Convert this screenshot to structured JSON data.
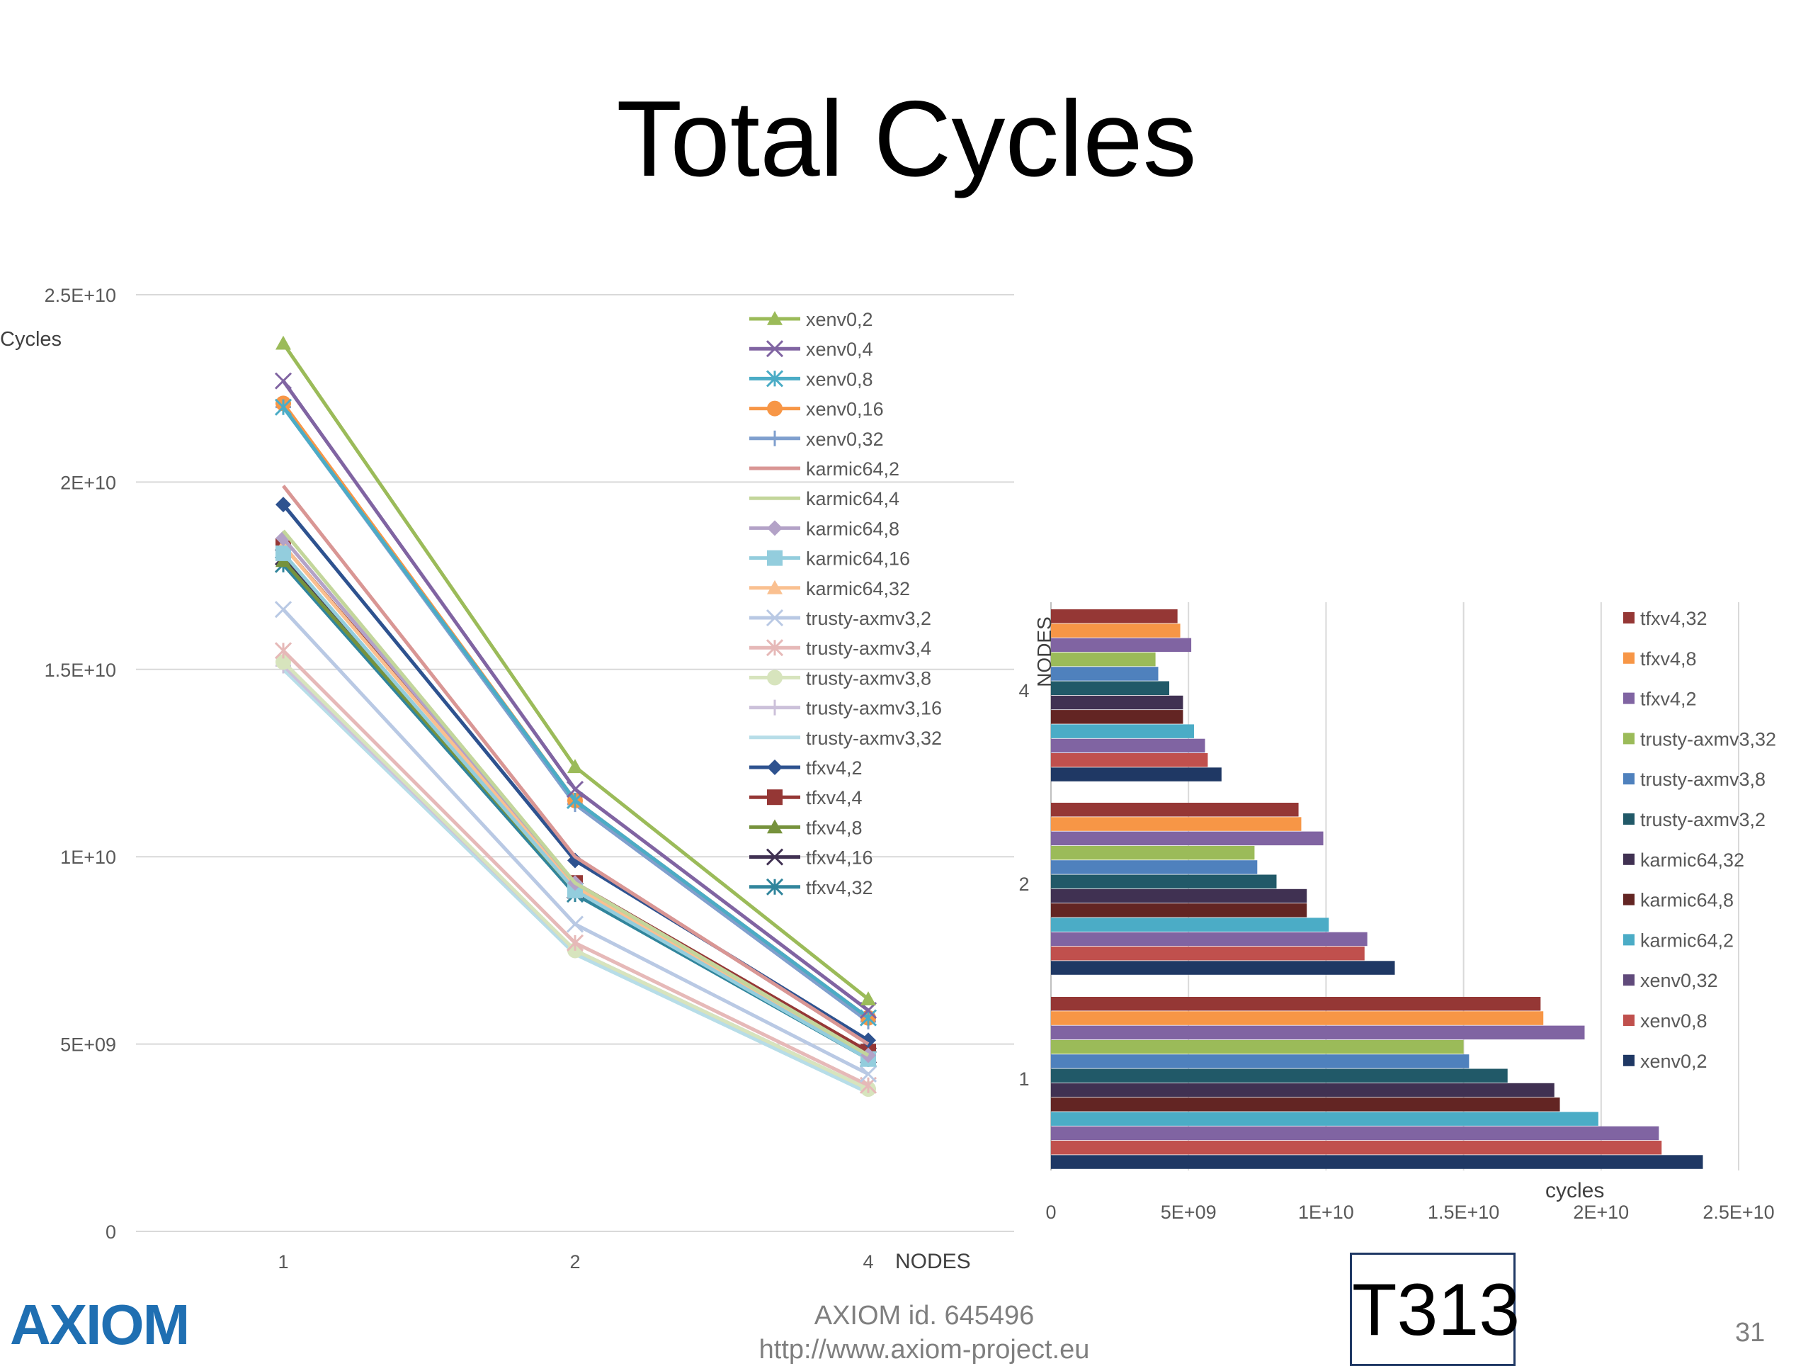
{
  "slide": {
    "title": "Total Cycles",
    "footer_id": "AXIOM id. 645496",
    "footer_url": "http://www.axiom-project.eu",
    "tag": "T313",
    "page_number": "31",
    "logo_text": "AXIOM"
  },
  "chart_data": [
    {
      "type": "line",
      "ylabel": "Cycles",
      "xlabel": "NODES",
      "categories": [
        "1",
        "2",
        "4"
      ],
      "ylim": [
        0,
        25000000000
      ],
      "yticks": [
        "0",
        "5E+09",
        "1E+10",
        "1.5E+10",
        "2E+10",
        "2.5E+10"
      ],
      "grid": true,
      "legend_position": "right",
      "series": [
        {
          "name": "xenv0,2",
          "color": "#9bbb59",
          "marker": "triangle",
          "values": [
            23700000000,
            12400000000,
            6200000000
          ]
        },
        {
          "name": "xenv0,4",
          "color": "#8064a2",
          "marker": "x",
          "values": [
            22700000000,
            11800000000,
            5900000000
          ]
        },
        {
          "name": "xenv0,8",
          "color": "#4bacc6",
          "marker": "star",
          "values": [
            22000000000,
            11500000000,
            5700000000
          ]
        },
        {
          "name": "xenv0,16",
          "color": "#f79646",
          "marker": "circle",
          "values": [
            22100000000,
            11500000000,
            5700000000
          ]
        },
        {
          "name": "xenv0,32",
          "color": "#7f9fce",
          "marker": "plus",
          "values": [
            22000000000,
            11400000000,
            5600000000
          ]
        },
        {
          "name": "karmic64,2",
          "color": "#d99694",
          "marker": "none",
          "values": [
            19900000000,
            10000000000,
            5000000000
          ]
        },
        {
          "name": "karmic64,4",
          "color": "#c3d69b",
          "marker": "none",
          "values": [
            18700000000,
            9300000000,
            4700000000
          ]
        },
        {
          "name": "karmic64,8",
          "color": "#b3a2c7",
          "marker": "diamond",
          "values": [
            18500000000,
            9300000000,
            4700000000
          ]
        },
        {
          "name": "karmic64,16",
          "color": "#93cddd",
          "marker": "square",
          "values": [
            18100000000,
            9100000000,
            4600000000
          ]
        },
        {
          "name": "karmic64,32",
          "color": "#fac090",
          "marker": "triangle",
          "values": [
            18300000000,
            9200000000,
            4600000000
          ]
        },
        {
          "name": "trusty-axmv3,2",
          "color": "#b9c9e4",
          "marker": "x",
          "values": [
            16600000000,
            8200000000,
            4200000000
          ]
        },
        {
          "name": "trusty-axmv3,4",
          "color": "#e6b9b8",
          "marker": "star",
          "values": [
            15500000000,
            7700000000,
            3900000000
          ]
        },
        {
          "name": "trusty-axmv3,8",
          "color": "#d7e4bd",
          "marker": "circle",
          "values": [
            15200000000,
            7500000000,
            3800000000
          ]
        },
        {
          "name": "trusty-axmv3,16",
          "color": "#ccc1da",
          "marker": "plus",
          "values": [
            15100000000,
            7500000000,
            3800000000
          ]
        },
        {
          "name": "trusty-axmv3,32",
          "color": "#b7dde8",
          "marker": "none",
          "values": [
            15000000000,
            7400000000,
            3700000000
          ]
        },
        {
          "name": "tfxv4,2",
          "color": "#2e528f",
          "marker": "diamond",
          "values": [
            19400000000,
            9900000000,
            5100000000
          ]
        },
        {
          "name": "tfxv4,4",
          "color": "#953735",
          "marker": "square",
          "values": [
            18300000000,
            9300000000,
            4800000000
          ]
        },
        {
          "name": "tfxv4,8",
          "color": "#76923c",
          "marker": "triangle",
          "values": [
            17900000000,
            9100000000,
            4700000000
          ]
        },
        {
          "name": "tfxv4,16",
          "color": "#403152",
          "marker": "x",
          "values": [
            18000000000,
            9100000000,
            4700000000
          ]
        },
        {
          "name": "tfxv4,32",
          "color": "#31859c",
          "marker": "star",
          "values": [
            17800000000,
            9000000000,
            4600000000
          ]
        }
      ]
    },
    {
      "type": "bar",
      "orientation": "horizontal",
      "xlabel": "cycles",
      "ylabel": "NODES",
      "categories": [
        "4",
        "2",
        "1"
      ],
      "xlim": [
        0,
        25000000000
      ],
      "xticks": [
        "0",
        "5E+09",
        "1E+10",
        "1.5E+10",
        "2E+10",
        "2.5E+10"
      ],
      "grid": true,
      "legend_position": "right",
      "legend": [
        "tfxv4,32",
        "tfxv4,8",
        "tfxv4,2",
        "trusty-axmv3,32",
        "trusty-axmv3,8",
        "trusty-axmv3,2",
        "karmic64,32",
        "karmic64,8",
        "karmic64,2",
        "xenv0,32",
        "xenv0,8",
        "xenv0,2"
      ],
      "series_colors": [
        "#953735",
        "#f79646",
        "#8064a2",
        "#9bbb59",
        "#4f81bd",
        "#215968",
        "#403152",
        "#632523",
        "#4bacc6",
        "#604a7b",
        "#c0504d",
        "#1f3864"
      ],
      "bar_colors_top_to_bottom": [
        "#953735",
        "#f79646",
        "#8064a2",
        "#9bbb59",
        "#4f81bd",
        "#215968",
        "#403152",
        "#632523",
        "#4bacc6",
        "#8064a2",
        "#c0504d",
        "#1f3864"
      ],
      "groups": [
        {
          "category": "4",
          "values_top_to_bottom": [
            4600000000,
            4700000000,
            5100000000,
            3800000000,
            3900000000,
            4300000000,
            4800000000,
            4800000000,
            5200000000,
            5600000000,
            5700000000,
            6200000000
          ]
        },
        {
          "category": "2",
          "values_top_to_bottom": [
            9000000000,
            9100000000,
            9900000000,
            7400000000,
            7500000000,
            8200000000,
            9300000000,
            9300000000,
            10100000000,
            11500000000,
            11400000000,
            12500000000
          ]
        },
        {
          "category": "1",
          "values_top_to_bottom": [
            17800000000,
            17900000000,
            19400000000,
            15000000000,
            15200000000,
            16600000000,
            18300000000,
            18500000000,
            19900000000,
            22100000000,
            22200000000,
            23700000000
          ]
        }
      ]
    }
  ]
}
